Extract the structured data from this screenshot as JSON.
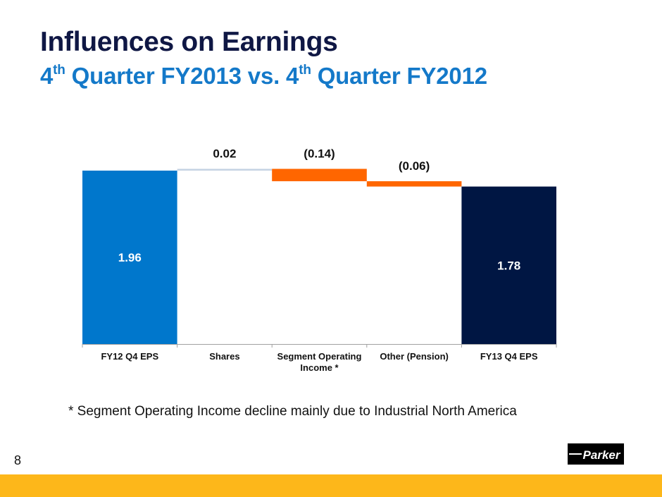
{
  "slide": {
    "title": "Influences on Earnings",
    "subtitle_parts": [
      {
        "text": "4",
        "sup": "th"
      },
      {
        "text": " Quarter FY2013 vs. 4",
        "sup": "th"
      },
      {
        "text": " Quarter FY2012",
        "sup": ""
      }
    ],
    "footnote": "* Segment Operating Income decline mainly due to Industrial North America",
    "page_number": "8",
    "logo_text": "Parker"
  },
  "colors": {
    "title": "#0f1744",
    "subtitle": "#1479c9",
    "start_bar": "#0077cc",
    "end_bar": "#001643",
    "increase": "#c5d3e3",
    "decrease": "#ff6600",
    "band": "#fdb71a"
  },
  "chart_data": {
    "type": "bar",
    "subtype": "waterfall",
    "title": "",
    "xlabel": "",
    "ylabel": "",
    "ylim": [
      0,
      2.0
    ],
    "grid": false,
    "legend": "none",
    "categories": [
      "FY12 Q4 EPS",
      "Shares",
      "Segment Operating Income *",
      "Other (Pension)",
      "FY13 Q4 EPS"
    ],
    "category_lines": [
      [
        "FY12 Q4 EPS"
      ],
      [
        "Shares"
      ],
      [
        "Segment Operating",
        "Income *"
      ],
      [
        "Other (Pension)"
      ],
      [
        "FY13 Q4 EPS"
      ]
    ],
    "values": [
      1.96,
      0.02,
      -0.14,
      -0.06,
      1.78
    ],
    "kinds": [
      "total",
      "increase",
      "decrease",
      "decrease",
      "total"
    ],
    "labels": [
      "1.96",
      "0.02",
      "(0.14)",
      "(0.06)",
      "1.78"
    ]
  }
}
